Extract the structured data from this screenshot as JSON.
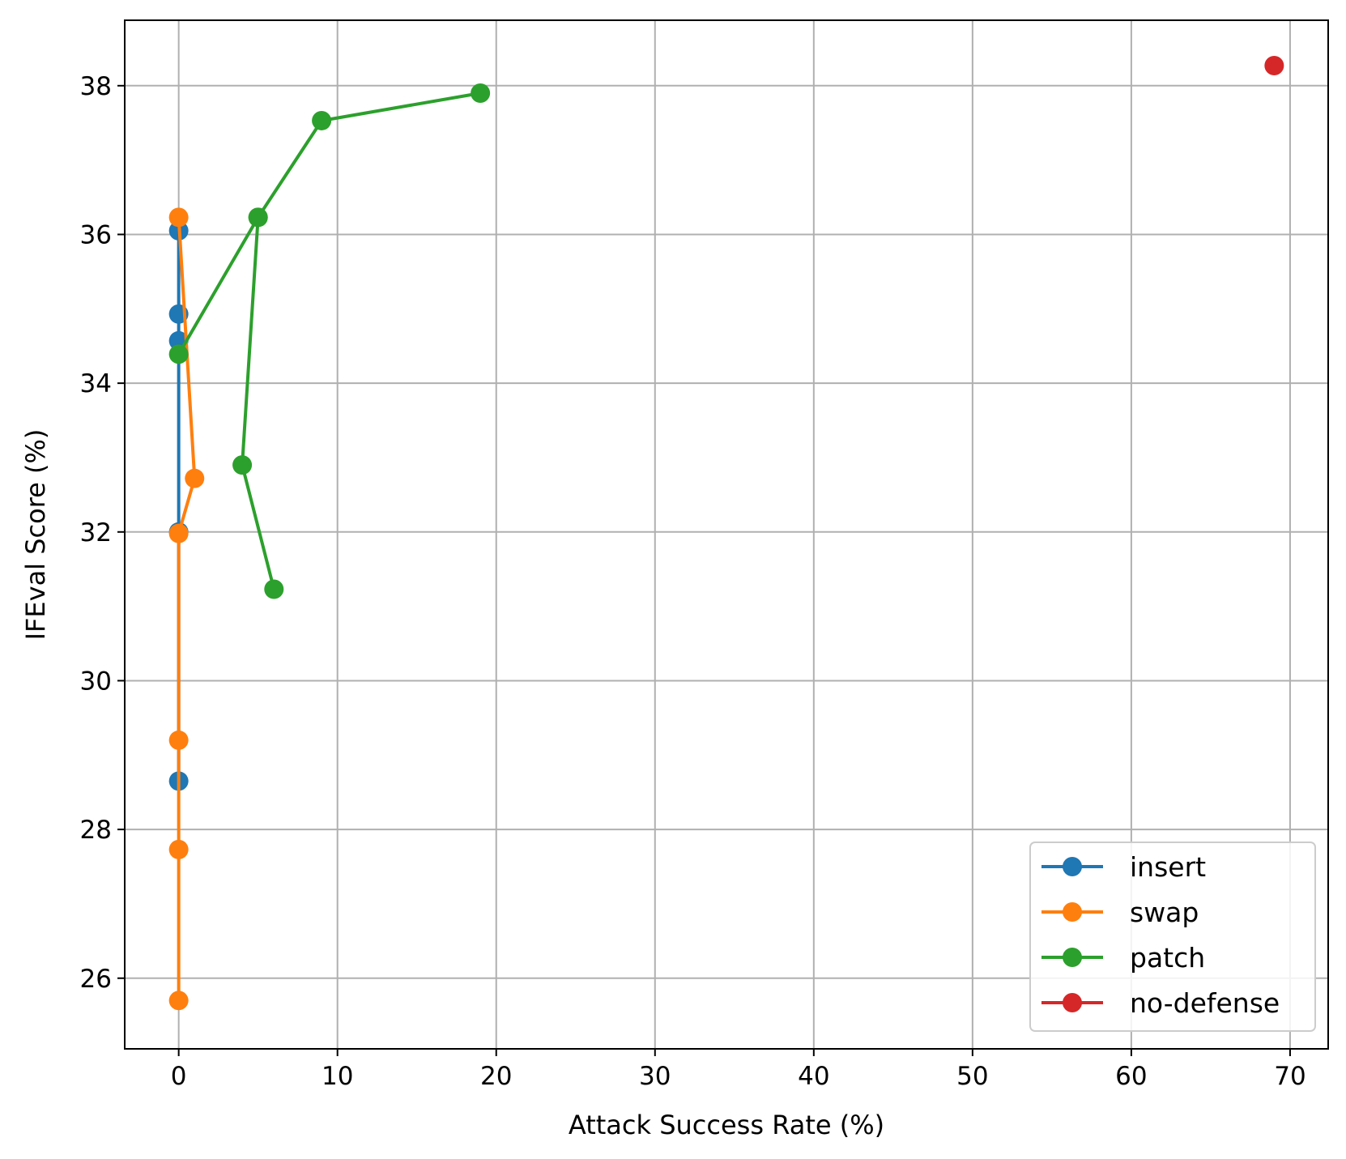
{
  "chart_data": {
    "type": "line",
    "title": "",
    "xlabel": "Attack Success Rate (%)",
    "ylabel": "IFEval Score (%)",
    "xlim": [
      -3.4,
      72.4
    ],
    "ylim": [
      25.05,
      38.88
    ],
    "xticks": [
      0,
      10,
      20,
      30,
      40,
      50,
      60,
      70
    ],
    "yticks": [
      26,
      28,
      30,
      32,
      34,
      36,
      38
    ],
    "grid": true,
    "legend_position": "lower right",
    "series": [
      {
        "name": "insert",
        "color": "#1f77b4",
        "points": [
          [
            0,
            28.65
          ],
          [
            0,
            32.0
          ],
          [
            0,
            34.57
          ],
          [
            0,
            34.93
          ],
          [
            0,
            36.05
          ]
        ]
      },
      {
        "name": "swap",
        "color": "#ff7f0e",
        "points": [
          [
            0,
            25.7
          ],
          [
            0,
            27.73
          ],
          [
            0,
            29.2
          ],
          [
            0,
            31.98
          ],
          [
            1,
            32.72
          ],
          [
            0,
            36.23
          ]
        ]
      },
      {
        "name": "patch",
        "color": "#2ca02c",
        "points": [
          [
            6,
            31.23
          ],
          [
            4,
            32.9
          ],
          [
            5,
            36.23
          ],
          [
            0,
            34.39
          ],
          [
            5,
            36.23
          ],
          [
            9,
            37.53
          ],
          [
            19,
            37.9
          ]
        ]
      },
      {
        "name": "no-defense",
        "color": "#d62728",
        "points": [
          [
            69,
            38.27
          ]
        ]
      }
    ]
  }
}
